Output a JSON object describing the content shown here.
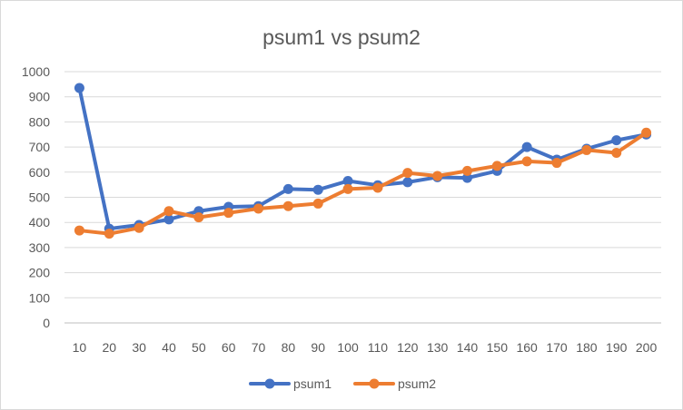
{
  "chart_data": {
    "type": "line",
    "title": "psum1 vs psum2",
    "xlabel": "",
    "ylabel": "",
    "categories": [
      "10",
      "20",
      "30",
      "40",
      "50",
      "60",
      "70",
      "80",
      "90",
      "100",
      "110",
      "120",
      "130",
      "140",
      "150",
      "160",
      "170",
      "180",
      "190",
      "200"
    ],
    "ylim": [
      0,
      1000
    ],
    "yticks": [
      0,
      100,
      200,
      300,
      400,
      500,
      600,
      700,
      800,
      900,
      1000
    ],
    "grid": true,
    "legend_position": "bottom",
    "series": [
      {
        "name": "psum1",
        "color": "#4472C4",
        "values": [
          935,
          375,
          390,
          412,
          445,
          462,
          465,
          533,
          530,
          565,
          548,
          560,
          580,
          577,
          605,
          700,
          650,
          693,
          727,
          750
        ]
      },
      {
        "name": "psum2",
        "color": "#ED7D31",
        "values": [
          368,
          355,
          378,
          445,
          420,
          438,
          455,
          465,
          475,
          533,
          538,
          597,
          585,
          605,
          625,
          643,
          637,
          688,
          677,
          757
        ]
      }
    ]
  }
}
